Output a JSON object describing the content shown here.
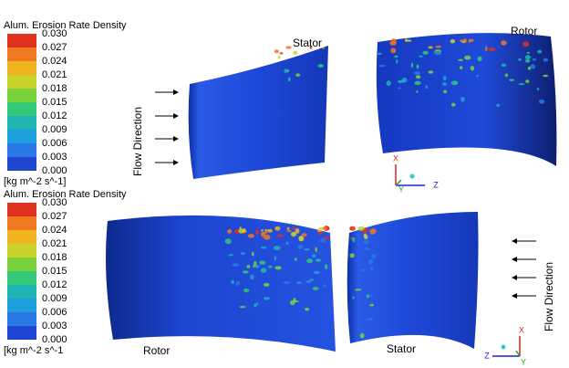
{
  "panels": [
    {
      "legend": {
        "title": "Alum. Erosion Rate Density",
        "ticks": [
          "0.030",
          "0.027",
          "0.024",
          "0.021",
          "0.018",
          "0.015",
          "0.012",
          "0.009",
          "0.006",
          "0.003",
          "0.000"
        ],
        "units": "[kg m^-2 s^-1]"
      },
      "stator_label": "Stator",
      "rotor_label": "Rotor",
      "flow_label": "Flow Direction",
      "axes": [
        "X",
        "Y",
        "Z"
      ]
    },
    {
      "legend": {
        "title": "Alum. Erosion Rate Density",
        "ticks": [
          "0.030",
          "0.027",
          "0.024",
          "0.021",
          "0.018",
          "0.015",
          "0.012",
          "0.009",
          "0.006",
          "0.003",
          "0.000"
        ],
        "units": "[kg m^-2 s^-1"
      },
      "stator_label": "Stator",
      "rotor_label": "Rotor",
      "flow_label": "Flow Direction",
      "axes": [
        "X",
        "Y",
        "Z"
      ]
    }
  ]
}
